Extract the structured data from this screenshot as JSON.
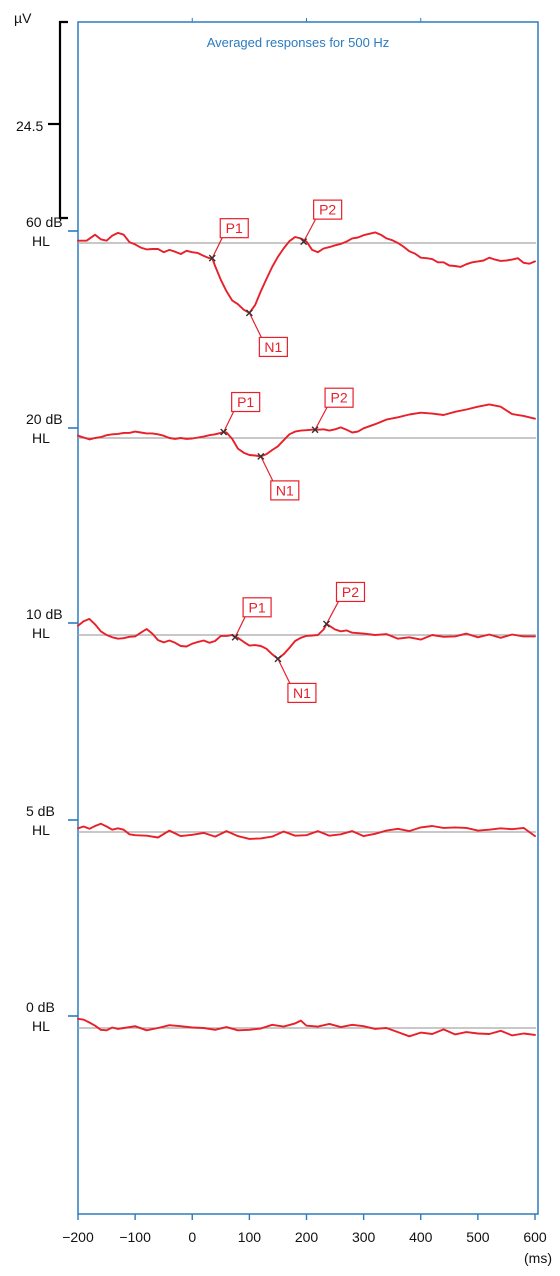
{
  "chart_data": {
    "type": "line",
    "title": "Averaged responses for 500 Hz",
    "y_unit": "µV",
    "x_unit": "(ms)",
    "scale_bar_label": "24.5",
    "x_ticks": [
      -200,
      -100,
      0,
      100,
      200,
      300,
      400,
      500,
      600
    ],
    "x_tick_labels": [
      "−200",
      "−100",
      "0",
      "100",
      "200",
      "300",
      "400",
      "500",
      "600"
    ],
    "xlim": [
      -200,
      600
    ],
    "colors": {
      "trace": "#e8202a",
      "axis": "#2a7bc0",
      "baseline": "#a6a6a6",
      "title": "#2a7bc0"
    },
    "series": [
      {
        "level_line1": "60 dB",
        "level_line2": "HL",
        "x": [
          -200,
          -185,
          -170,
          -160,
          -150,
          -140,
          -130,
          -120,
          -110,
          -100,
          -90,
          -80,
          -70,
          -60,
          -50,
          -40,
          -30,
          -20,
          -10,
          0,
          10,
          20,
          30,
          35,
          40,
          50,
          60,
          70,
          80,
          90,
          100,
          110,
          120,
          130,
          140,
          150,
          160,
          170,
          180,
          190,
          200,
          210,
          220,
          230,
          240,
          250,
          260,
          270,
          280,
          290,
          300,
          310,
          320,
          330,
          340,
          350,
          360,
          370,
          380,
          390,
          400,
          410,
          420,
          430,
          440,
          450,
          460,
          470,
          480,
          490,
          500,
          510,
          520,
          530,
          540,
          550,
          560,
          570,
          580,
          590,
          600
        ],
        "y": [
          0.5,
          0.5,
          1.8,
          0.8,
          0.5,
          1.6,
          2.2,
          1.8,
          0.2,
          -0.3,
          -1.0,
          -1.4,
          -1.3,
          -1.3,
          -2.0,
          -1.5,
          -1.9,
          -2.4,
          -1.7,
          -2.0,
          -2.2,
          -2.8,
          -3.3,
          -3.3,
          -5.0,
          -8.0,
          -10.5,
          -12.5,
          -13.3,
          -14.5,
          -15.2,
          -13.5,
          -10.5,
          -7.8,
          -5.2,
          -3.0,
          -1.2,
          0.4,
          1.3,
          1.0,
          0.3,
          -1.5,
          -2.0,
          -1.2,
          -0.9,
          -0.5,
          -0.2,
          0.3,
          1.0,
          1.2,
          1.7,
          2.0,
          2.3,
          1.8,
          1.0,
          0.6,
          0.0,
          -0.8,
          -1.8,
          -2.3,
          -3.2,
          -3.3,
          -3.5,
          -4.2,
          -4.2,
          -4.9,
          -5.0,
          -5.2,
          -4.6,
          -4.2,
          -4.0,
          -3.8,
          -3.2,
          -3.6,
          -3.9,
          -3.8,
          -3.6,
          -3.3,
          -4.3,
          -4.5,
          -4.0
        ],
        "peaks": [
          {
            "label": "P1",
            "x": 35,
            "y": -3.3
          },
          {
            "label": "N1",
            "x": 100,
            "y": -15.2
          },
          {
            "label": "P2",
            "x": 195,
            "y": 0.3
          }
        ]
      },
      {
        "level_line1": "20 dB",
        "level_line2": "HL",
        "x": [
          -200,
          -190,
          -180,
          -170,
          -160,
          -150,
          -140,
          -130,
          -120,
          -110,
          -100,
          -90,
          -80,
          -70,
          -60,
          -50,
          -40,
          -30,
          -20,
          -10,
          0,
          10,
          20,
          30,
          40,
          50,
          55,
          60,
          70,
          80,
          90,
          100,
          110,
          120,
          130,
          140,
          150,
          160,
          170,
          180,
          190,
          200,
          210,
          220,
          230,
          240,
          250,
          260,
          270,
          280,
          290,
          300,
          320,
          340,
          360,
          380,
          400,
          420,
          440,
          460,
          480,
          500,
          520,
          540,
          560,
          580,
          600
        ],
        "y": [
          0.5,
          0.1,
          -0.3,
          0.0,
          0.2,
          0.6,
          0.8,
          0.9,
          1.1,
          1.1,
          1.4,
          1.2,
          1.0,
          1.0,
          0.8,
          0.5,
          0.0,
          -0.2,
          0.0,
          -0.2,
          -0.1,
          0.1,
          0.3,
          0.6,
          0.8,
          1.1,
          1.3,
          1.2,
          -0.2,
          -2.3,
          -3.2,
          -3.7,
          -3.8,
          -4.0,
          -3.5,
          -2.6,
          -1.8,
          -0.5,
          0.8,
          1.4,
          1.6,
          1.7,
          1.8,
          1.8,
          1.9,
          1.6,
          1.9,
          2.3,
          1.8,
          1.2,
          1.4,
          2.1,
          3.0,
          4.0,
          4.5,
          5.1,
          5.5,
          5.3,
          5.0,
          5.7,
          6.2,
          6.8,
          7.3,
          6.8,
          5.2,
          4.8,
          4.2
        ],
        "peaks": [
          {
            "label": "P1",
            "x": 55,
            "y": 1.3
          },
          {
            "label": "N1",
            "x": 120,
            "y": -4.0
          },
          {
            "label": "P2",
            "x": 215,
            "y": 1.8
          }
        ]
      },
      {
        "level_line1": "10 dB",
        "level_line2": "HL",
        "x": [
          -200,
          -190,
          -180,
          -170,
          -160,
          -150,
          -140,
          -130,
          -120,
          -110,
          -100,
          -90,
          -80,
          -70,
          -60,
          -50,
          -40,
          -30,
          -20,
          -10,
          0,
          10,
          20,
          30,
          40,
          50,
          60,
          70,
          75,
          80,
          90,
          100,
          110,
          120,
          130,
          140,
          150,
          160,
          170,
          180,
          190,
          200,
          210,
          220,
          230,
          235,
          240,
          250,
          260,
          270,
          280,
          300,
          320,
          340,
          360,
          380,
          400,
          420,
          440,
          460,
          480,
          500,
          520,
          540,
          560,
          580,
          600
        ],
        "y": [
          2.0,
          3.0,
          3.5,
          2.3,
          0.8,
          0.0,
          -0.5,
          -0.8,
          -0.7,
          -0.4,
          -0.3,
          0.5,
          1.3,
          0.3,
          -1.1,
          -1.6,
          -1.2,
          -1.7,
          -2.4,
          -2.5,
          -1.9,
          -1.5,
          -1.2,
          -1.7,
          -1.3,
          -0.2,
          -0.2,
          0.0,
          -0.5,
          -0.6,
          -1.5,
          -2.3,
          -2.2,
          -2.4,
          -3.0,
          -4.2,
          -5.2,
          -4.2,
          -2.8,
          -1.3,
          -0.6,
          -0.2,
          -0.1,
          0.0,
          1.2,
          2.4,
          2.0,
          1.2,
          0.8,
          1.0,
          0.5,
          0.3,
          0.0,
          0.2,
          -0.8,
          -0.5,
          -1.0,
          0.0,
          -0.4,
          -0.3,
          0.3,
          -0.5,
          0.1,
          -0.6,
          0.1,
          -0.3,
          -0.3
        ],
        "peaks": [
          {
            "label": "P1",
            "x": 75,
            "y": -0.5
          },
          {
            "label": "N1",
            "x": 150,
            "y": -5.2
          },
          {
            "label": "P2",
            "x": 235,
            "y": 2.4
          }
        ]
      },
      {
        "level_line1": "5 dB",
        "level_line2": "HL",
        "x": [
          -200,
          -190,
          -180,
          -170,
          -160,
          -150,
          -140,
          -130,
          -120,
          -110,
          -100,
          -80,
          -60,
          -40,
          -20,
          0,
          20,
          40,
          60,
          80,
          100,
          120,
          140,
          160,
          180,
          200,
          220,
          240,
          260,
          280,
          300,
          320,
          340,
          360,
          380,
          400,
          420,
          440,
          460,
          480,
          500,
          520,
          540,
          560,
          580,
          600
        ],
        "y": [
          0.8,
          1.2,
          0.7,
          1.3,
          1.8,
          1.2,
          0.5,
          0.8,
          0.5,
          -0.5,
          -0.7,
          -0.8,
          -1.2,
          0.3,
          -0.9,
          -0.6,
          -0.2,
          -1.0,
          0.2,
          -0.9,
          -1.5,
          -1.4,
          -1.0,
          0.1,
          -0.8,
          -0.7,
          0.2,
          -0.8,
          -0.5,
          0.2,
          -0.9,
          -0.4,
          0.3,
          0.7,
          0.2,
          1.0,
          1.3,
          0.9,
          1.0,
          0.9,
          0.3,
          0.5,
          0.8,
          0.6,
          0.9,
          -0.9
        ],
        "peaks": []
      },
      {
        "level_line1": "0 dB",
        "level_line2": "HL",
        "x": [
          -200,
          -190,
          -180,
          -170,
          -160,
          -150,
          -140,
          -130,
          -120,
          -100,
          -80,
          -60,
          -40,
          -20,
          0,
          20,
          40,
          60,
          80,
          100,
          120,
          140,
          160,
          180,
          190,
          200,
          220,
          240,
          260,
          280,
          300,
          320,
          340,
          360,
          380,
          400,
          420,
          440,
          460,
          480,
          500,
          520,
          540,
          560,
          580,
          600
        ],
        "y": [
          2.0,
          1.8,
          1.2,
          0.5,
          -0.4,
          -0.5,
          0.1,
          -0.2,
          0.0,
          0.4,
          -0.5,
          0.0,
          0.6,
          0.4,
          0.1,
          0.0,
          -0.4,
          0.2,
          -0.5,
          -0.4,
          -0.1,
          0.7,
          0.3,
          1.0,
          1.6,
          0.5,
          0.3,
          0.9,
          0.2,
          0.7,
          0.4,
          -0.2,
          0.0,
          -0.9,
          -1.8,
          -1.0,
          -1.3,
          -0.3,
          -1.4,
          -0.9,
          -1.2,
          -1.3,
          -0.6,
          -1.6,
          -1.2,
          -1.5
        ],
        "peaks": []
      }
    ]
  }
}
